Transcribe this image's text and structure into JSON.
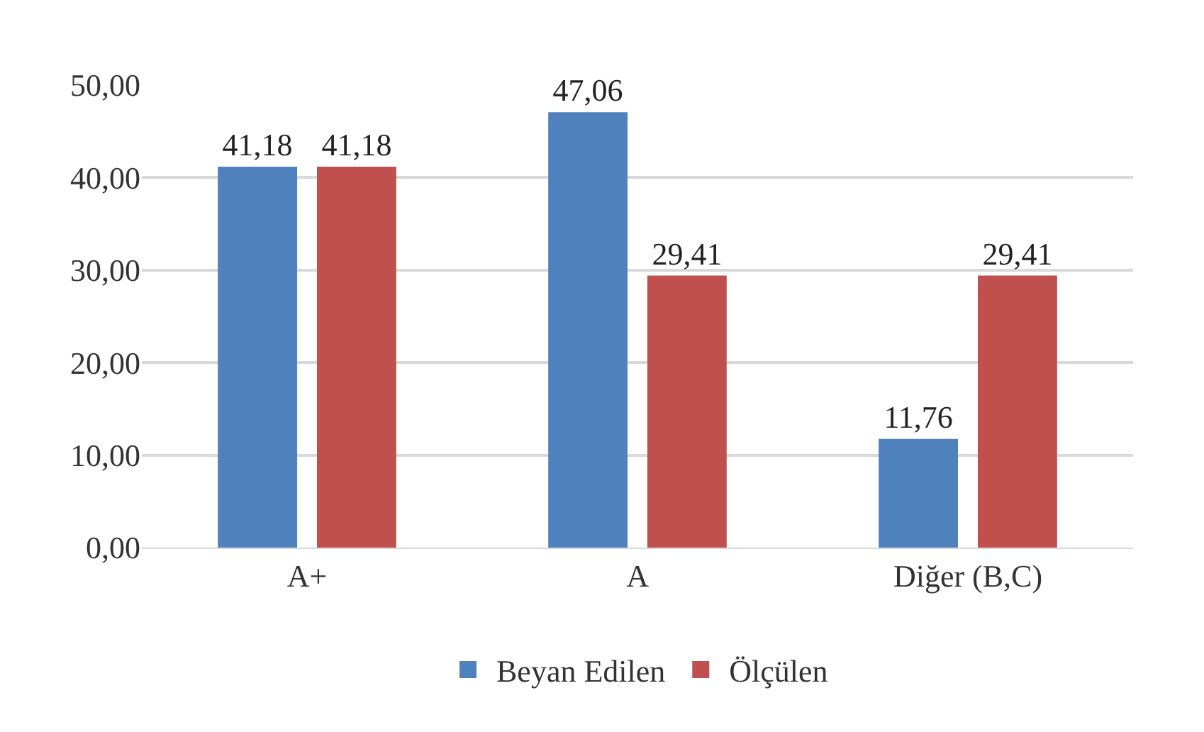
{
  "chart_data": {
    "type": "bar",
    "categories": [
      "A+",
      "A",
      "Diğer (B,C)"
    ],
    "series": [
      {
        "name": "Beyan Edilen",
        "color": "#4f81bd",
        "values": [
          41.18,
          47.06,
          11.76
        ],
        "value_labels": [
          "41,18",
          "47,06",
          "11,76"
        ]
      },
      {
        "name": "Ölçülen",
        "color": "#c0504d",
        "values": [
          41.18,
          29.41,
          29.41
        ],
        "value_labels": [
          "41,18",
          "29,41",
          "29,41"
        ]
      }
    ],
    "ylim": [
      0,
      50
    ],
    "yticks": [
      {
        "value": 0,
        "label": "0,00"
      },
      {
        "value": 10,
        "label": "10,00"
      },
      {
        "value": 20,
        "label": "20,00"
      },
      {
        "value": 30,
        "label": "30,00"
      },
      {
        "value": 40,
        "label": "40,00"
      },
      {
        "value": 50,
        "label": "50,00"
      }
    ],
    "grid": "y",
    "legend": "bottom"
  }
}
